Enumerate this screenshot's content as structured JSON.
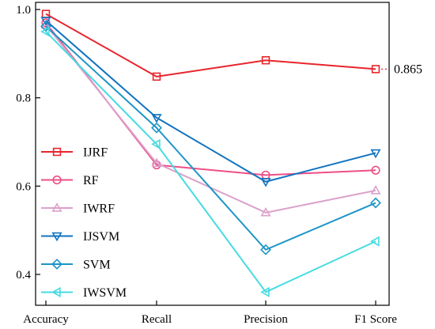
{
  "chart_data": {
    "type": "line",
    "categories": [
      "Accuracy",
      "Recall",
      "Precision",
      "F1 Score"
    ],
    "ylim": [
      0.35,
      1.0
    ],
    "yticks": [
      0.4,
      0.6,
      0.8,
      1.0
    ],
    "ytick_labels": [
      "0.4",
      "0.6",
      "0.8",
      "1.0"
    ],
    "grid": false,
    "legend_position": "left",
    "series": [
      {
        "name": "IJRF",
        "color": "#e8252c",
        "marker": "square",
        "values": [
          0.99,
          0.848,
          0.885,
          0.865
        ]
      },
      {
        "name": "RF",
        "color": "#ee4f86",
        "marker": "circle",
        "values": [
          0.97,
          0.648,
          0.625,
          0.636
        ]
      },
      {
        "name": "IWRF",
        "color": "#dba1cb",
        "marker": "triangle-up",
        "values": [
          0.965,
          0.652,
          0.54,
          0.59
        ]
      },
      {
        "name": "IJSVM",
        "color": "#1173c1",
        "marker": "triangle-down",
        "values": [
          0.975,
          0.755,
          0.61,
          0.675
        ]
      },
      {
        "name": "SVM",
        "color": "#1d95c6",
        "marker": "diamond",
        "values": [
          0.962,
          0.732,
          0.456,
          0.562
        ]
      },
      {
        "name": "IWSVM",
        "color": "#45dbe2",
        "marker": "triangle-left",
        "values": [
          0.95,
          0.695,
          0.36,
          0.475
        ]
      }
    ],
    "annotation": {
      "series": "IJRF",
      "category": "F1 Score",
      "value": 0.865,
      "label": "0.865"
    }
  }
}
